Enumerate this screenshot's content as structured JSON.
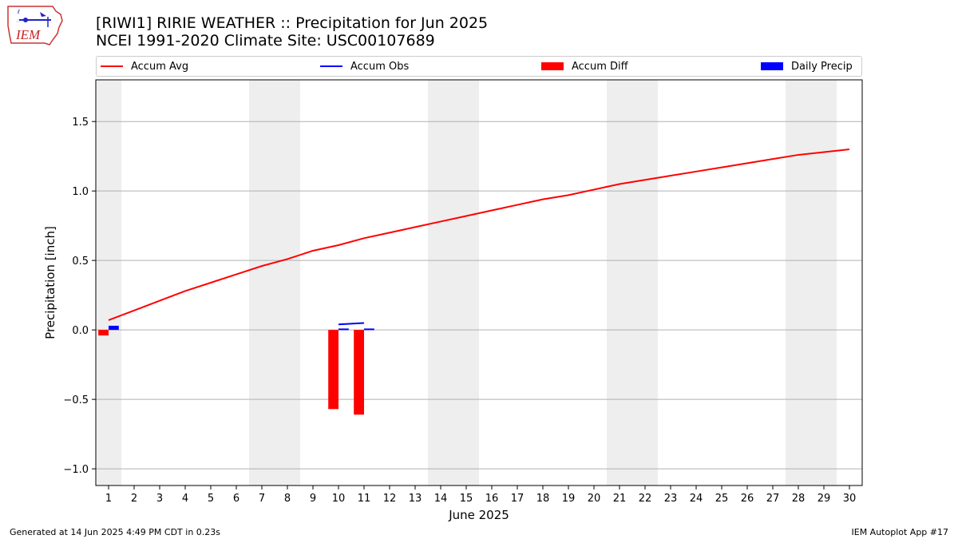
{
  "header": {
    "title_line1": "[RIWI1] RIRIE WEATHER :: Precipitation for Jun 2025",
    "title_line2": "NCEI 1991-2020 Climate Site: USC00107689",
    "logo_text": "IEM"
  },
  "footer": {
    "left": "Generated at 14 Jun 2025 4:49 PM CDT in 0.23s",
    "right": "IEM Autoplot App #17"
  },
  "colors": {
    "accum_avg": "#ff0000",
    "accum_obs": "#0000ff",
    "accum_diff": "#ff0000",
    "daily_precip": "#0000ff",
    "weekend_shade": "#eeeeee",
    "grid": "#b0b0b0"
  },
  "chart_data": {
    "type": "bar",
    "xlabel": "June 2025",
    "ylabel": "Precipitation [inch]",
    "ylim": [
      -1.12,
      1.8
    ],
    "xlim": [
      0.5,
      30.5
    ],
    "x": [
      1,
      2,
      3,
      4,
      5,
      6,
      7,
      8,
      9,
      10,
      11,
      12,
      13,
      14,
      15,
      16,
      17,
      18,
      19,
      20,
      21,
      22,
      23,
      24,
      25,
      26,
      27,
      28,
      29,
      30
    ],
    "x_tick_labels": [
      "1",
      "2",
      "3",
      "4",
      "5",
      "6",
      "7",
      "8",
      "9",
      "10",
      "11",
      "12",
      "13",
      "14",
      "15",
      "16",
      "17",
      "18",
      "19",
      "20",
      "21",
      "22",
      "23",
      "24",
      "25",
      "26",
      "27",
      "28",
      "29",
      "30"
    ],
    "y_ticks": [
      -1.0,
      -0.5,
      0.0,
      0.5,
      1.0,
      1.5
    ],
    "y_tick_labels": [
      "−1.0",
      "−0.5",
      "0.0",
      "0.5",
      "1.0",
      "1.5"
    ],
    "grid": "y",
    "legend_position": "top",
    "shaded_weekend_days": [
      1,
      7,
      8,
      14,
      15,
      21,
      22,
      28,
      29
    ],
    "series": [
      {
        "name": "Accum Avg",
        "kind": "line",
        "x": [
          1,
          2,
          3,
          4,
          5,
          6,
          7,
          8,
          9,
          10,
          11,
          12,
          13,
          14,
          15,
          16,
          17,
          18,
          19,
          20,
          21,
          22,
          23,
          24,
          25,
          26,
          27,
          28,
          29,
          30
        ],
        "values": [
          0.07,
          0.14,
          0.21,
          0.28,
          0.34,
          0.4,
          0.46,
          0.51,
          0.57,
          0.61,
          0.66,
          0.7,
          0.74,
          0.78,
          0.82,
          0.86,
          0.9,
          0.94,
          0.97,
          1.01,
          1.05,
          1.08,
          1.11,
          1.14,
          1.17,
          1.2,
          1.23,
          1.26,
          1.28,
          1.3
        ]
      },
      {
        "name": "Accum Obs",
        "kind": "line",
        "x": [
          10,
          11
        ],
        "values": [
          0.04,
          0.05
        ]
      },
      {
        "name": "Accum Diff",
        "kind": "bar",
        "x": [
          1,
          10,
          11
        ],
        "values": [
          -0.04,
          -0.57,
          -0.61
        ]
      },
      {
        "name": "Daily Precip",
        "kind": "bar",
        "x": [
          1,
          10,
          11
        ],
        "values": [
          0.03,
          0.01,
          0.01
        ]
      }
    ]
  }
}
